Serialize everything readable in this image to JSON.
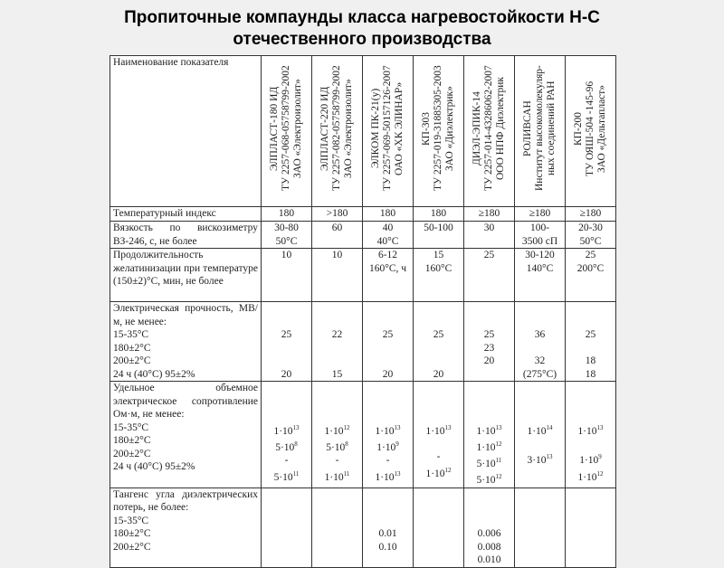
{
  "title": [
    "Пропиточные компаунды класса нагревостойкости Н-С",
    "отечественного производства"
  ],
  "table": {
    "header_label": "Наименование показателя",
    "columns": [
      [
        "ЭЛПЛАСТ-180 ИД",
        "ТУ 2257-068-05758799-2002",
        "ЗАО «Электроизолит»"
      ],
      [
        "ЭЛПЛАСТ-220 ИД",
        "ТУ 2257-082-05758799-2002",
        "ЗАО «Электроизолит»"
      ],
      [
        "ЭЛКОМ ПК-21(у)",
        "ТУ 2257-069-50157126-2007",
        "ОАО «ХК ЭЛИНАР»"
      ],
      [
        "КП-303",
        "ТУ 2257-019-31885305-2003",
        "ЗАО «Диэлектрик»"
      ],
      [
        "ДИЭЛ-ЭПИК-14",
        "ТУ 2257-014-43286062-2007",
        "ООО НПФ Диэлектрик"
      ],
      [
        "РОЛИВСАН",
        "Институт высокомолекуляр-",
        "ных соединений РАН"
      ],
      [
        "КП-200",
        "ТУ ОЯШ-504 -145-96",
        "ЗАО «Дельтапласт»"
      ]
    ],
    "rows": [
      {
        "label": [
          "Температурный индекс"
        ],
        "cells": [
          [
            "180"
          ],
          [
            ">180"
          ],
          [
            "180"
          ],
          [
            "180"
          ],
          [
            "≥180"
          ],
          [
            "≥180"
          ],
          [
            "≥180"
          ]
        ]
      },
      {
        "label": [
          "Вязкость по вискозиметру ВЗ-246, с, не более"
        ],
        "cells": [
          [
            "30-80",
            "50°C"
          ],
          [
            "60"
          ],
          [
            "40",
            "40°C"
          ],
          [
            "50-100"
          ],
          [
            "30"
          ],
          [
            "100-",
            "3500 сП"
          ],
          [
            "20-30",
            "50°C"
          ]
        ]
      },
      {
        "label": [
          "Продолжительность желатинизации при температуре (150±2)°С, мин, не более"
        ],
        "cells": [
          [
            "10"
          ],
          [
            "10"
          ],
          [
            "6-12",
            "160°C, ч"
          ],
          [
            "15",
            "160°C"
          ],
          [
            "25"
          ],
          [
            "30-120",
            "140°C"
          ],
          [
            "25",
            "200°C"
          ]
        ]
      },
      {
        "label": [
          "Электрическая прочность, МВ/м, не менее:",
          "15-35°С",
          "180±2°С",
          "200±2°С",
          "24 ч (40°С) 95±2%"
        ],
        "cells": [
          [
            "",
            "",
            "25",
            "",
            "",
            "20"
          ],
          [
            "",
            "",
            "22",
            "",
            "",
            "15"
          ],
          [
            "",
            "",
            "25",
            "",
            "",
            "20"
          ],
          [
            "",
            "",
            "25",
            "",
            "",
            "20"
          ],
          [
            "",
            "",
            "25",
            "23",
            "20",
            ""
          ],
          [
            "",
            "",
            "36",
            "",
            "32",
            "(275°C)"
          ],
          [
            "",
            "",
            "25",
            "",
            "18",
            "18"
          ]
        ]
      },
      {
        "label": [
          "Удельное объемное электрическое сопротивление Ом·м, не менее:",
          "15-35°С",
          "180±2°С",
          "200±2°С",
          "24 ч (40°С) 95±2%"
        ],
        "cells": [
          [
            "",
            "",
            "",
            "1·10^13",
            "5·10^8",
            "-",
            "5·10^11"
          ],
          [
            "",
            "",
            "",
            "1·10^12",
            "5·10^8",
            "-",
            "1·10^11"
          ],
          [
            "",
            "",
            "",
            "1·10^13",
            "1·10^9",
            "-",
            "1·10^13"
          ],
          [
            "",
            "",
            "",
            "1·10^13",
            "",
            "-",
            "1·10^12"
          ],
          [
            "",
            "",
            "",
            "1·10^13",
            "1·10^12",
            "5·10^11",
            "5·10^12"
          ],
          [
            "",
            "",
            "",
            "1·10^14",
            "",
            "3·10^13",
            ""
          ],
          [
            "",
            "",
            "",
            "1·10^13",
            "",
            "1·10^9",
            "1·10^12"
          ]
        ]
      },
      {
        "label": [
          "Тангенс угла диэлектрических потерь, не более:",
          "15-35°С",
          "180±2°С",
          "200±2°С"
        ],
        "cells": [
          [],
          [],
          [
            "",
            "",
            "",
            "0.01",
            "0.10"
          ],
          [],
          [
            "",
            "",
            "",
            "0.006",
            "0.008",
            "0.010"
          ],
          [],
          []
        ]
      }
    ]
  }
}
